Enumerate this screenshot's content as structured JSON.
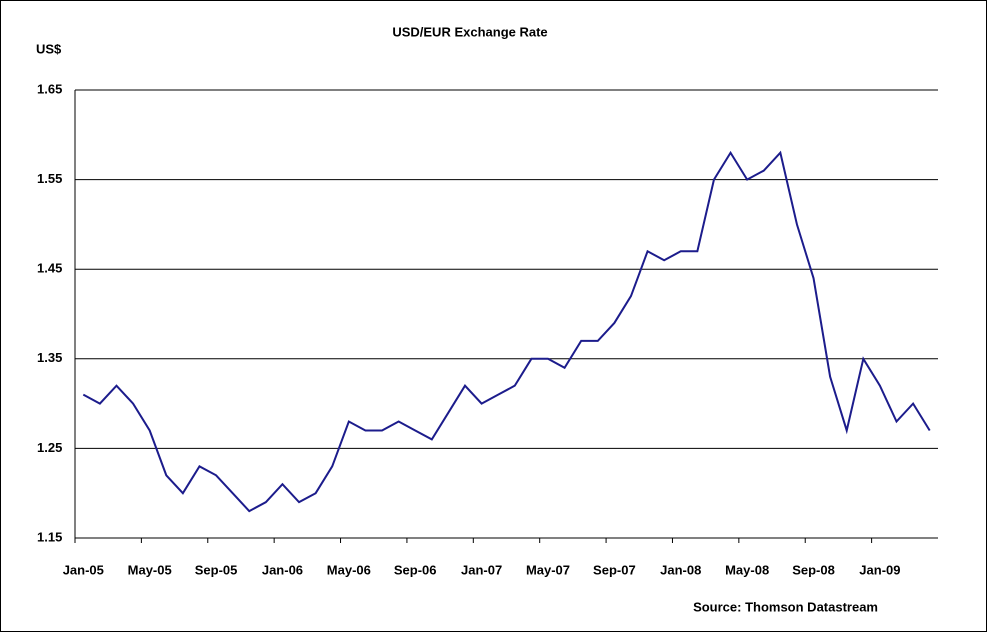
{
  "chart_data": {
    "type": "line",
    "title": "USD/EUR Exchange Rate",
    "y_label": "US$",
    "source": "Source: Thomson Datastream",
    "x": [
      "2005-01",
      "2005-02",
      "2005-03",
      "2005-04",
      "2005-05",
      "2005-06",
      "2005-07",
      "2005-08",
      "2005-09",
      "2005-10",
      "2005-11",
      "2005-12",
      "2006-01",
      "2006-02",
      "2006-03",
      "2006-04",
      "2006-05",
      "2006-06",
      "2006-07",
      "2006-08",
      "2006-09",
      "2006-10",
      "2006-11",
      "2006-12",
      "2007-01",
      "2007-02",
      "2007-03",
      "2007-04",
      "2007-05",
      "2007-06",
      "2007-07",
      "2007-08",
      "2007-09",
      "2007-10",
      "2007-11",
      "2007-12",
      "2008-01",
      "2008-02",
      "2008-03",
      "2008-04",
      "2008-05",
      "2008-06",
      "2008-07",
      "2008-08",
      "2008-09",
      "2008-10",
      "2008-11",
      "2008-12",
      "2009-01",
      "2009-02",
      "2009-03",
      "2009-04"
    ],
    "xticks": [
      {
        "value": "2005-01",
        "label": "Jan-05"
      },
      {
        "value": "2005-05",
        "label": "May-05"
      },
      {
        "value": "2005-09",
        "label": "Sep-05"
      },
      {
        "value": "2006-01",
        "label": "Jan-06"
      },
      {
        "value": "2006-05",
        "label": "May-06"
      },
      {
        "value": "2006-09",
        "label": "Sep-06"
      },
      {
        "value": "2007-01",
        "label": "Jan-07"
      },
      {
        "value": "2007-05",
        "label": "May-07"
      },
      {
        "value": "2007-09",
        "label": "Sep-07"
      },
      {
        "value": "2008-01",
        "label": "Jan-08"
      },
      {
        "value": "2008-05",
        "label": "May-08"
      },
      {
        "value": "2008-09",
        "label": "Sep-08"
      },
      {
        "value": "2009-01",
        "label": "Jan-09"
      }
    ],
    "series": [
      {
        "name": "USD/EUR",
        "color": "#1c1c8c",
        "values": [
          1.31,
          1.3,
          1.32,
          1.3,
          1.27,
          1.22,
          1.2,
          1.23,
          1.22,
          1.2,
          1.18,
          1.19,
          1.21,
          1.19,
          1.2,
          1.23,
          1.28,
          1.27,
          1.27,
          1.28,
          1.27,
          1.26,
          1.29,
          1.32,
          1.3,
          1.31,
          1.32,
          1.35,
          1.35,
          1.34,
          1.37,
          1.37,
          1.39,
          1.42,
          1.47,
          1.46,
          1.47,
          1.47,
          1.55,
          1.58,
          1.55,
          1.56,
          1.58,
          1.5,
          1.44,
          1.33,
          1.27,
          1.35,
          1.32,
          1.28,
          1.3,
          1.27
        ]
      }
    ],
    "ylim": [
      1.15,
      1.65
    ],
    "yticks": [
      1.15,
      1.25,
      1.35,
      1.45,
      1.55,
      1.65
    ],
    "grid": true
  }
}
